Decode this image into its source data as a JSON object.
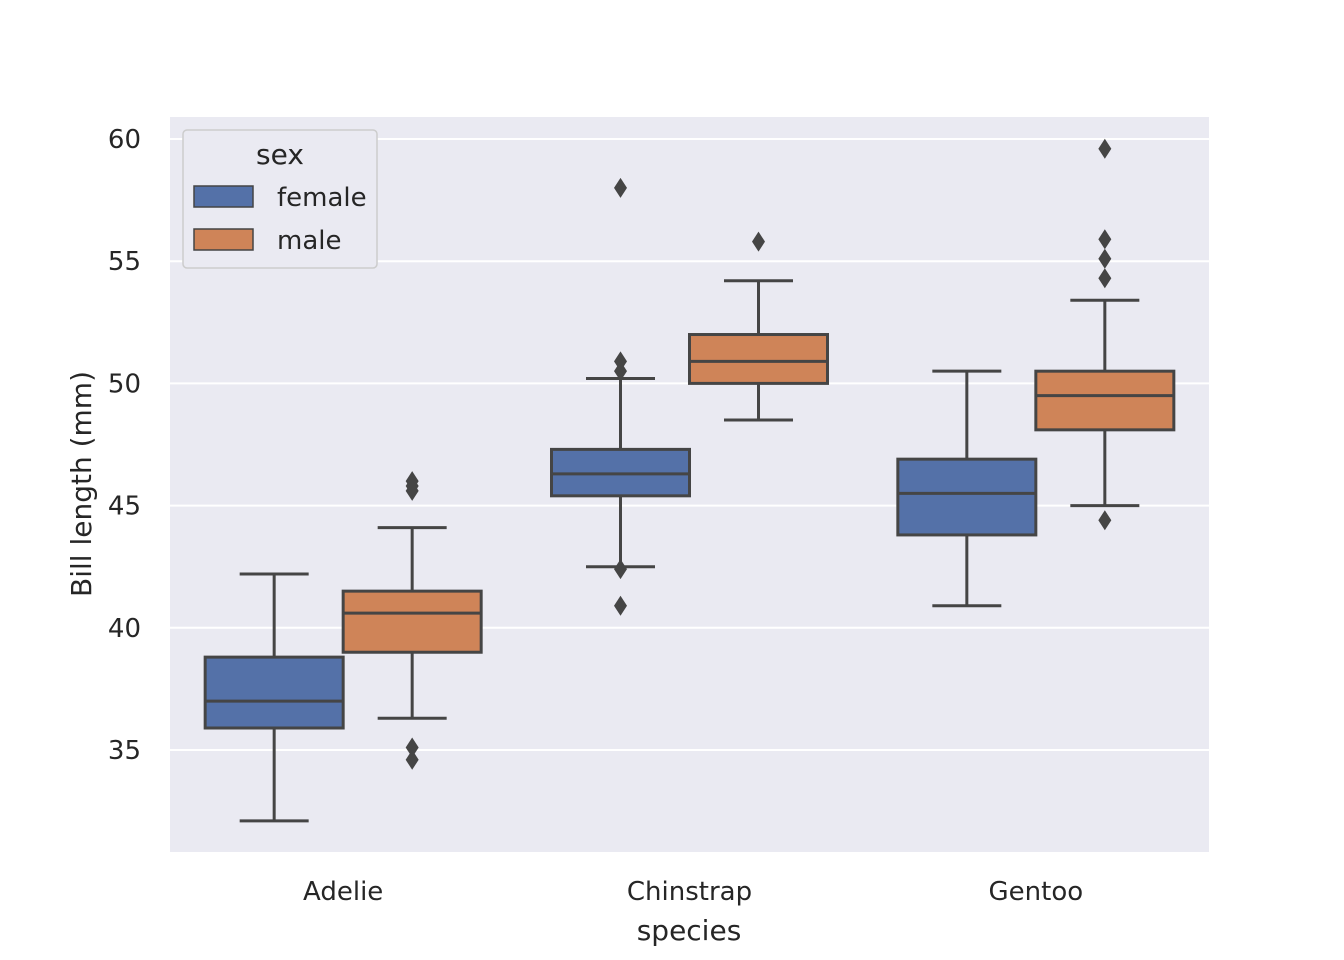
{
  "chart_data": {
    "type": "box",
    "xlabel": "species",
    "ylabel": "Bill length (mm)",
    "categories": [
      "Adelie",
      "Chinstrap",
      "Gentoo"
    ],
    "ylim": [
      31,
      61
    ],
    "yticks": [
      35,
      40,
      45,
      50,
      55,
      60
    ],
    "grid": true,
    "legend": {
      "title": "sex",
      "placement": "top-left"
    },
    "series": [
      {
        "name": "female",
        "color": "#5471a8",
        "boxes": [
          {
            "category": "Adelie",
            "whisker_low": 32.1,
            "q1": 35.9,
            "median": 37.0,
            "q3": 38.8,
            "whisker_high": 42.2,
            "outliers": []
          },
          {
            "category": "Chinstrap",
            "whisker_low": 42.5,
            "q1": 45.4,
            "median": 46.3,
            "q3": 47.3,
            "whisker_high": 50.2,
            "outliers": [
              40.9,
              42.4,
              50.5,
              50.9,
              58.0
            ]
          },
          {
            "category": "Gentoo",
            "whisker_low": 40.9,
            "q1": 43.8,
            "median": 45.5,
            "q3": 46.9,
            "whisker_high": 50.5,
            "outliers": []
          }
        ]
      },
      {
        "name": "male",
        "color": "#cf8458",
        "boxes": [
          {
            "category": "Adelie",
            "whisker_low": 36.3,
            "q1": 39.0,
            "median": 40.6,
            "q3": 41.5,
            "whisker_high": 44.1,
            "outliers": [
              34.6,
              35.1,
              45.6,
              45.8,
              46.0
            ]
          },
          {
            "category": "Chinstrap",
            "whisker_low": 48.5,
            "q1": 50.0,
            "median": 50.9,
            "q3": 52.0,
            "whisker_high": 54.2,
            "outliers": [
              55.8
            ]
          },
          {
            "category": "Gentoo",
            "whisker_low": 45.0,
            "q1": 48.1,
            "median": 49.5,
            "q3": 50.5,
            "whisker_high": 53.4,
            "outliers": [
              44.4,
              54.3,
              55.1,
              55.9,
              59.6
            ]
          }
        ]
      }
    ]
  }
}
